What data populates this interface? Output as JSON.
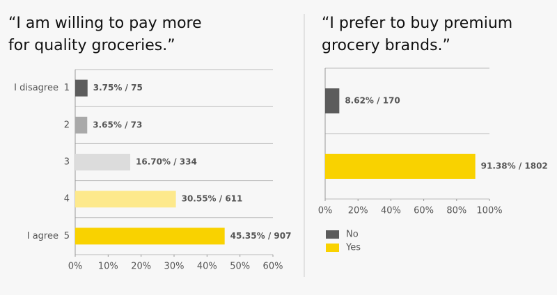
{
  "chart_data": [
    {
      "type": "bar",
      "orientation": "horizontal",
      "title": [
        "“I am willing to pay more",
        "for quality groceries.”"
      ],
      "categories": [
        "1",
        "2",
        "3",
        "4",
        "5"
      ],
      "category_notes": [
        "I disagree",
        null,
        null,
        null,
        "I agree"
      ],
      "values": [
        3.75,
        3.65,
        16.7,
        30.55,
        45.35
      ],
      "value_labels": [
        "3.75% / 75",
        "3.65% / 73",
        "16.70% / 334",
        "30.55% / 611",
        "45.35% / 907"
      ],
      "colors": [
        "#5c5c5c",
        "#a9a9a9",
        "#dcdcdc",
        "#fde98c",
        "#f9d200"
      ],
      "xlim": [
        0,
        60
      ],
      "xticks": [
        {
          "value": 0,
          "label": "0%"
        },
        {
          "value": 10,
          "label": "10%"
        },
        {
          "value": 20,
          "label": "20%"
        },
        {
          "value": 30,
          "label": "30%"
        },
        {
          "value": 40,
          "label": "40%"
        },
        {
          "value": 50,
          "label": "50%"
        },
        {
          "value": 60,
          "label": "60%"
        }
      ],
      "grid": true,
      "legend": false
    },
    {
      "type": "bar",
      "orientation": "horizontal",
      "title": [
        "“I prefer to buy premium",
        "grocery brands.”"
      ],
      "categories": [
        "No",
        "Yes"
      ],
      "values": [
        8.62,
        91.38
      ],
      "value_labels": [
        "8.62% / 170",
        "91.38% / 1802"
      ],
      "colors": [
        "#5c5c5c",
        "#f9d200"
      ],
      "xlim": [
        0,
        100
      ],
      "xticks": [
        {
          "value": 0,
          "label": "0%"
        },
        {
          "value": 20,
          "label": "20%"
        },
        {
          "value": 40,
          "label": "40%"
        },
        {
          "value": 60,
          "label": "60%"
        },
        {
          "value": 80,
          "label": "80%"
        },
        {
          "value": 100,
          "label": "100%"
        }
      ],
      "grid": true,
      "legend": true
    }
  ]
}
